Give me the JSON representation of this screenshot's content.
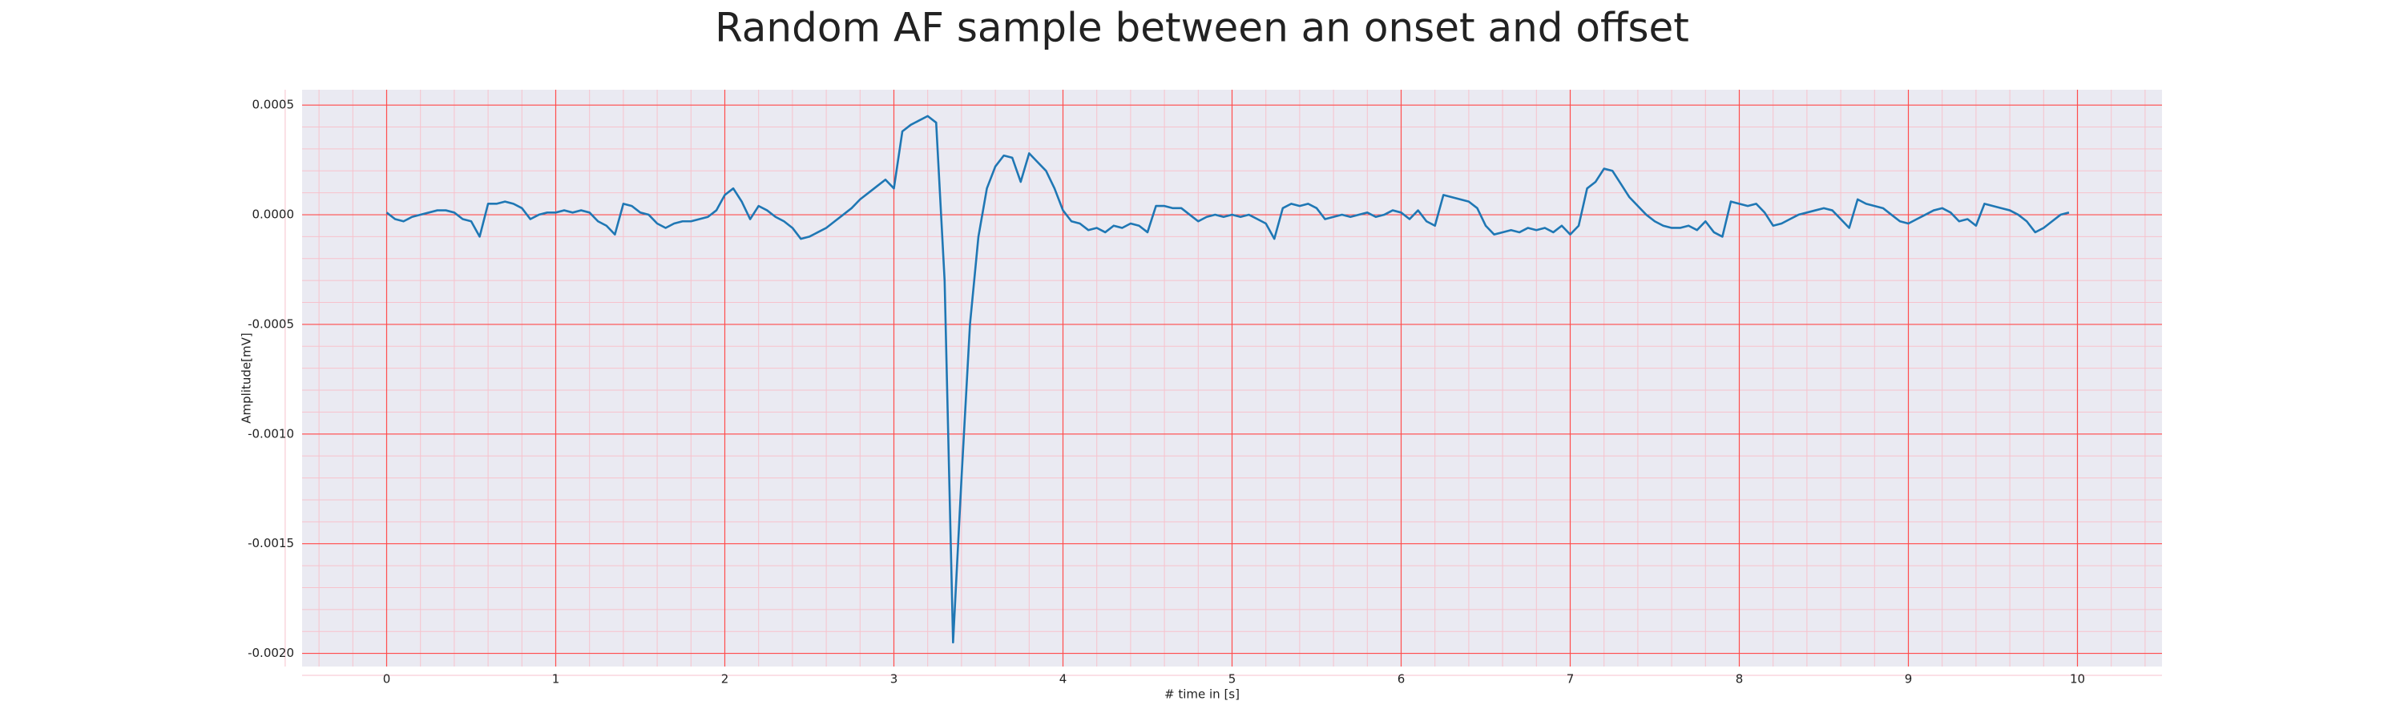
{
  "chart_data": {
    "type": "line",
    "title": "Random AF sample between an onset and offset",
    "xlabel": "# time in [s]",
    "ylabel": "Amplitude[mV]",
    "color": "#1f77b4",
    "background": "#eaeaf2",
    "grid": true,
    "grid_color": "#ff4d4d",
    "minor_grid": true,
    "minor_grid_color": "#f7c2cc",
    "xlim": [
      -0.5,
      10.5
    ],
    "ylim": [
      -0.00206,
      0.00057
    ],
    "xticks": [
      0,
      1,
      2,
      3,
      4,
      5,
      6,
      7,
      8,
      9,
      10
    ],
    "yticks": [
      0.0005,
      {
        "value": 0,
        "label": "0.0000"
      },
      -0.0005,
      {
        "value": -0.001,
        "label": "-0.0010"
      },
      -0.0015,
      {
        "value": -0.002,
        "label": "-0.0020"
      }
    ],
    "x": [
      0,
      0.05,
      0.1,
      0.15,
      0.2,
      0.25,
      0.3,
      0.35,
      0.4,
      0.45,
      0.5,
      0.55,
      0.6,
      0.65,
      0.7,
      0.75,
      0.8,
      0.85,
      0.9,
      0.95,
      1,
      1.05,
      1.1,
      1.15,
      1.2,
      1.25,
      1.3,
      1.35,
      1.4,
      1.45,
      1.5,
      1.55,
      1.6,
      1.65,
      1.7,
      1.75,
      1.8,
      1.85,
      1.9,
      1.95,
      2,
      2.05,
      2.1,
      2.15,
      2.2,
      2.25,
      2.3,
      2.35,
      2.4,
      2.45,
      2.5,
      2.55,
      2.6,
      2.65,
      2.7,
      2.75,
      2.8,
      2.85,
      2.9,
      2.95,
      3,
      3.05,
      3.1,
      3.15,
      3.2,
      3.25,
      3.3,
      3.35,
      3.4,
      3.45,
      3.5,
      3.55,
      3.6,
      3.65,
      3.7,
      3.75,
      3.8,
      3.85,
      3.9,
      3.95,
      4,
      4.05,
      4.1,
      4.15,
      4.2,
      4.25,
      4.3,
      4.35,
      4.4,
      4.45,
      4.5,
      4.55,
      4.6,
      4.65,
      4.7,
      4.75,
      4.8,
      4.85,
      4.9,
      4.95,
      5,
      5.05,
      5.1,
      5.15,
      5.2,
      5.25,
      5.3,
      5.35,
      5.4,
      5.45,
      5.5,
      5.55,
      5.6,
      5.65,
      5.7,
      5.75,
      5.8,
      5.85,
      5.9,
      5.95,
      6,
      6.05,
      6.1,
      6.15,
      6.2,
      6.25,
      6.3,
      6.35,
      6.4,
      6.45,
      6.5,
      6.55,
      6.6,
      6.65,
      6.7,
      6.75,
      6.8,
      6.85,
      6.9,
      6.95,
      7,
      7.05,
      7.1,
      7.15,
      7.2,
      7.25,
      7.3,
      7.35,
      7.4,
      7.45,
      7.5,
      7.55,
      7.6,
      7.65,
      7.7,
      7.75,
      7.8,
      7.85,
      7.9,
      7.95,
      8,
      8.05,
      8.1,
      8.15,
      8.2,
      8.25,
      8.3,
      8.35,
      8.4,
      8.45,
      8.5,
      8.55,
      8.6,
      8.65,
      8.7,
      8.75,
      8.8,
      8.85,
      8.9,
      8.95,
      9,
      9.05,
      9.1,
      9.15,
      9.2,
      9.25,
      9.3,
      9.35,
      9.4,
      9.45,
      9.5,
      9.55,
      9.6,
      9.65,
      9.7,
      9.75,
      9.8,
      9.85,
      9.9,
      9.95
    ],
    "values": [
      1e-05,
      -2e-05,
      -3e-05,
      -1e-05,
      0,
      1e-05,
      2e-05,
      2e-05,
      1e-05,
      -2e-05,
      -3e-05,
      -0.0001,
      5e-05,
      5e-05,
      6e-05,
      5e-05,
      3e-05,
      -2e-05,
      0,
      1e-05,
      1e-05,
      2e-05,
      1e-05,
      2e-05,
      1e-05,
      -3e-05,
      -5e-05,
      -9e-05,
      5e-05,
      4e-05,
      1e-05,
      0,
      -4e-05,
      -6e-05,
      -4e-05,
      -3e-05,
      -3e-05,
      -2e-05,
      -1e-05,
      2e-05,
      9e-05,
      0.00012,
      6e-05,
      -2e-05,
      4e-05,
      2e-05,
      -1e-05,
      -3e-05,
      -6e-05,
      -0.00011,
      -0.0001,
      -8e-05,
      -6e-05,
      -3e-05,
      0,
      3e-05,
      7e-05,
      0.0001,
      0.00013,
      0.00016,
      0.00012,
      0.00038,
      0.00041,
      0.00043,
      0.00045,
      0.00042,
      -0.0003,
      -0.00195,
      -0.0012,
      -0.0005,
      -0.0001,
      0.00012,
      0.00022,
      0.00027,
      0.00026,
      0.00015,
      0.00028,
      0.00024,
      0.0002,
      0.00012,
      2e-05,
      -3e-05,
      -4e-05,
      -7e-05,
      -6e-05,
      -8e-05,
      -5e-05,
      -6e-05,
      -4e-05,
      -5e-05,
      -8e-05,
      4e-05,
      4e-05,
      3e-05,
      3e-05,
      0,
      -3e-05,
      -1e-05,
      0,
      -1e-05,
      0,
      -1e-05,
      0,
      -2e-05,
      -4e-05,
      -0.00011,
      3e-05,
      5e-05,
      4e-05,
      5e-05,
      3e-05,
      -2e-05,
      -1e-05,
      0,
      -1e-05,
      0,
      1e-05,
      -1e-05,
      0,
      2e-05,
      1e-05,
      -2e-05,
      2e-05,
      -3e-05,
      -5e-05,
      9e-05,
      8e-05,
      7e-05,
      6e-05,
      3e-05,
      -5e-05,
      -9e-05,
      -8e-05,
      -7e-05,
      -8e-05,
      -6e-05,
      -7e-05,
      -6e-05,
      -8e-05,
      -5e-05,
      -9e-05,
      -5e-05,
      0.00012,
      0.00015,
      0.00021,
      0.0002,
      0.00014,
      8e-05,
      4e-05,
      0,
      -3e-05,
      -5e-05,
      -6e-05,
      -6e-05,
      -5e-05,
      -7e-05,
      -3e-05,
      -8e-05,
      -0.0001,
      6e-05,
      5e-05,
      4e-05,
      5e-05,
      1e-05,
      -5e-05,
      -4e-05,
      -2e-05,
      0,
      1e-05,
      2e-05,
      3e-05,
      2e-05,
      -2e-05,
      -6e-05,
      7e-05,
      5e-05,
      4e-05,
      3e-05,
      0,
      -3e-05,
      -4e-05,
      -2e-05,
      0,
      2e-05,
      3e-05,
      1e-05,
      -3e-05,
      -2e-05,
      -5e-05,
      5e-05,
      4e-05,
      3e-05,
      2e-05,
      0,
      -3e-05,
      -8e-05,
      -6e-05,
      -3e-05,
      0,
      1e-05
    ]
  }
}
